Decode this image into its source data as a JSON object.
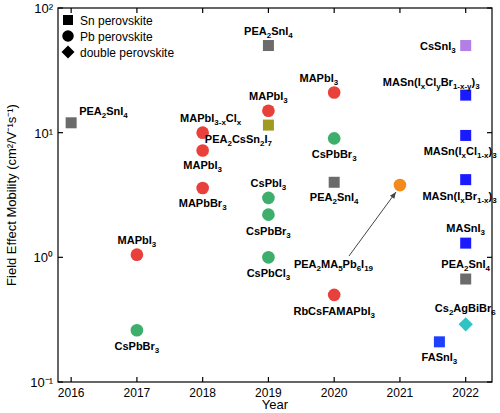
{
  "chart_data": {
    "type": "scatter",
    "x_label": "Year",
    "y_label": "Field Effect Mobility (cm²/V⁻¹s⁻¹)",
    "log": "y",
    "xlim": [
      2015.8,
      2022.4
    ],
    "xticks": [
      2016,
      2017,
      2018,
      2019,
      2020,
      2021,
      2022
    ],
    "ylim": [
      0.1,
      100
    ],
    "yticks": [
      {
        "value": 0.1,
        "label": "10⁻¹"
      },
      {
        "value": 1,
        "label": "10⁰"
      },
      {
        "value": 10,
        "label": "10¹"
      },
      {
        "value": 100,
        "label": "10²"
      }
    ],
    "legend": "upper left",
    "series": [
      {
        "name": "Sn perovskite",
        "marker": "square",
        "color": "#000000",
        "x": [
          2016,
          2019,
          2019,
          2020,
          2021.6,
          2022,
          2022,
          2022,
          2022,
          2022,
          2022
        ],
        "values": [
          12,
          50,
          11.5,
          4,
          0.21,
          50,
          20,
          9.5,
          4.2,
          1.3,
          0.67
        ],
        "colors": [
          "#6b6b6b",
          "#6b6b6b",
          "#9e9a22",
          "#6b6b6b",
          "#1f3fff",
          "#b37fe6",
          "#1a1aff",
          "#1a1aff",
          "#1a1aff",
          "#1a1aff",
          "#6b6b6b"
        ],
        "point_labels": [
          "PEA2SnI4",
          "PEA2SnI4",
          "PEA2CsSn2I7",
          "PEA2SnI4",
          "FASnI3",
          "CsSnI3",
          "MASn(IxClyBr1-x-y)3",
          "MASn(IxCl1-x)3",
          "MASn(IxBr1-x)3",
          "MASnI3",
          "PEA2SnI4"
        ]
      },
      {
        "name": "Pb perovskite",
        "marker": "circle",
        "color": "#000000",
        "x": [
          2017,
          2017,
          2018,
          2018,
          2018,
          2019,
          2019,
          2019,
          2019,
          2020,
          2020,
          2020,
          2021
        ],
        "values": [
          1.05,
          0.26,
          10,
          7.2,
          3.6,
          15,
          3.0,
          2.2,
          1.0,
          21,
          9,
          0.5,
          3.8
        ],
        "colors": [
          "#e8413c",
          "#3dae6b",
          "#e8413c",
          "#e8413c",
          "#e8413c",
          "#e8413c",
          "#3dae6b",
          "#3dae6b",
          "#3dae6b",
          "#e8413c",
          "#3dae6b",
          "#e8413c",
          "#f28a1c"
        ],
        "point_labels": [
          "MAPbI3",
          "CsPbBr3",
          "MAPbI3-xClx",
          "MAPbI3",
          "MAPbBr3",
          "MAPbI3",
          "CsPbI3",
          "CsPbBr3",
          "CsPbCl3",
          "MAPbI3",
          "CsPbBr3",
          "RbCsFAMAPbI3",
          "PEA2MA5Pb6I19"
        ]
      },
      {
        "name": "double perovskite",
        "marker": "diamond",
        "color": "#000000",
        "x": [
          2022
        ],
        "values": [
          0.29
        ],
        "colors": [
          "#2ec4c4"
        ],
        "point_labels": [
          "Cs2AgBiBr6"
        ]
      }
    ]
  }
}
